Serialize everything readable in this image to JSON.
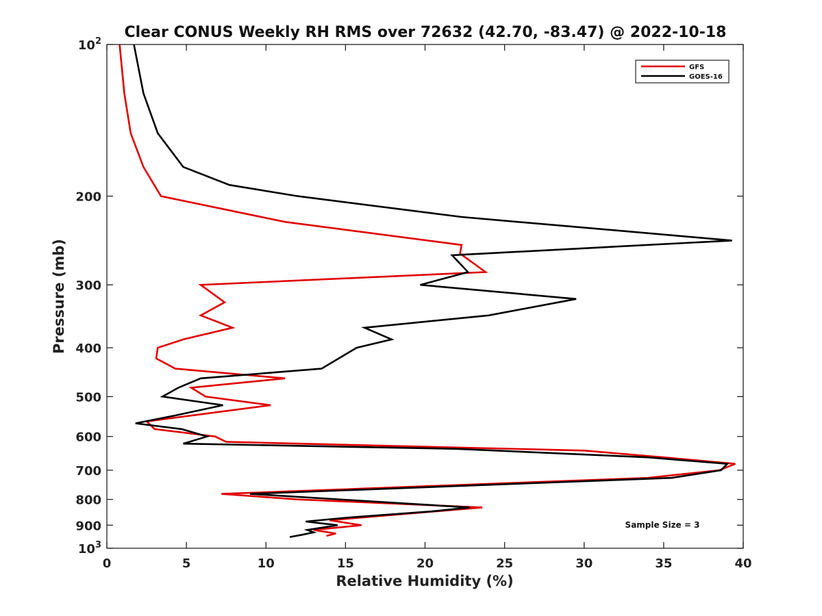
{
  "chart_data": {
    "type": "line",
    "title": "Clear CONUS Weekly RH RMS over 72632 (42.70, -83.47) @ 2022-10-18",
    "xlabel": "Relative Humidity (%)",
    "ylabel": "Pressure (mb)",
    "xlim": [
      0,
      40
    ],
    "ylim": [
      100,
      1000
    ],
    "y_scale": "log",
    "y_reversed": true,
    "x_ticks": [
      "0",
      "5",
      "10",
      "15",
      "20",
      "25",
      "30",
      "35",
      "40"
    ],
    "y_ticks": [
      {
        "value": 100,
        "label": "10",
        "sup": "2"
      },
      {
        "value": 200,
        "label": "200",
        "sup": ""
      },
      {
        "value": 300,
        "label": "300",
        "sup": ""
      },
      {
        "value": 400,
        "label": "400",
        "sup": ""
      },
      {
        "value": 500,
        "label": "500",
        "sup": ""
      },
      {
        "value": 600,
        "label": "600",
        "sup": ""
      },
      {
        "value": 700,
        "label": "700",
        "sup": ""
      },
      {
        "value": 800,
        "label": "800",
        "sup": ""
      },
      {
        "value": 900,
        "label": "900",
        "sup": ""
      },
      {
        "value": 1000,
        "label": "10",
        "sup": "3"
      }
    ],
    "grid": false,
    "legend_position": "top-right",
    "annotation": "Sample Size = 3",
    "series": [
      {
        "name": "GFS",
        "color": "#e00000",
        "points": [
          [
            0.8,
            100
          ],
          [
            1.1,
            125
          ],
          [
            1.5,
            150
          ],
          [
            2.3,
            175
          ],
          [
            3.4,
            200
          ],
          [
            11.2,
            225
          ],
          [
            22.3,
            250
          ],
          [
            22.2,
            260
          ],
          [
            23.8,
            283
          ],
          [
            5.9,
            300
          ],
          [
            7.4,
            325
          ],
          [
            5.9,
            345
          ],
          [
            7.9,
            365
          ],
          [
            4.8,
            385
          ],
          [
            3.2,
            400
          ],
          [
            3.1,
            420
          ],
          [
            4.3,
            440
          ],
          [
            11.2,
            460
          ],
          [
            5.3,
            480
          ],
          [
            6.2,
            500
          ],
          [
            10.3,
            520
          ],
          [
            2.5,
            560
          ],
          [
            3.0,
            580
          ],
          [
            6.8,
            600
          ],
          [
            7.5,
            615
          ],
          [
            30,
            640
          ],
          [
            35,
            660
          ],
          [
            39.5,
            680
          ],
          [
            38.5,
            700
          ],
          [
            34,
            725
          ],
          [
            7.2,
            780
          ],
          [
            12,
            800
          ],
          [
            23.6,
            830
          ],
          [
            14,
            880
          ],
          [
            16,
            900
          ],
          [
            13,
            920
          ],
          [
            14.4,
            935
          ],
          [
            13.8,
            945
          ]
        ]
      },
      {
        "name": "GOES-16",
        "color": "#000000",
        "points": [
          [
            1.7,
            100
          ],
          [
            2.3,
            125
          ],
          [
            3.2,
            150
          ],
          [
            4.8,
            175
          ],
          [
            7.7,
            190
          ],
          [
            12,
            200
          ],
          [
            22.3,
            220
          ],
          [
            39.3,
            245
          ],
          [
            21.7,
            262
          ],
          [
            22.7,
            283
          ],
          [
            19.7,
            300
          ],
          [
            29.5,
            320
          ],
          [
            24,
            345
          ],
          [
            16.2,
            365
          ],
          [
            17.9,
            385
          ],
          [
            15.7,
            400
          ],
          [
            13.5,
            440
          ],
          [
            5.9,
            460
          ],
          [
            4.5,
            480
          ],
          [
            3.5,
            500
          ],
          [
            7.3,
            520
          ],
          [
            4.3,
            545
          ],
          [
            1.8,
            565
          ],
          [
            4.7,
            580
          ],
          [
            6.3,
            600
          ],
          [
            4.8,
            620
          ],
          [
            22,
            635
          ],
          [
            34,
            660
          ],
          [
            39,
            680
          ],
          [
            38.6,
            700
          ],
          [
            35.5,
            725
          ],
          [
            9,
            780
          ],
          [
            22.8,
            830
          ],
          [
            20.4,
            845
          ],
          [
            15,
            870
          ],
          [
            12.5,
            885
          ],
          [
            14.5,
            900
          ],
          [
            12.6,
            920
          ],
          [
            13,
            930
          ],
          [
            12.3,
            940
          ],
          [
            11.5,
            950
          ]
        ]
      }
    ]
  }
}
